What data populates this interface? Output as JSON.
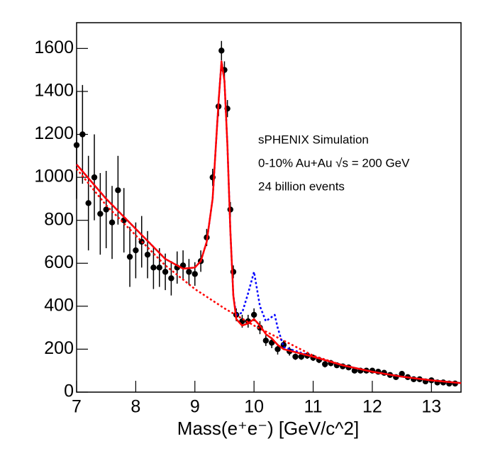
{
  "chart_data": {
    "type": "scatter",
    "xlabel": "Mass(e⁺e⁻) [GeV/c^2]",
    "annotations": [
      "sPHENIX Simulation",
      "0-10% Au+Au √s = 200 GeV",
      "24 billion events"
    ],
    "xlim": [
      7,
      13.5
    ],
    "ylim": [
      0,
      1720
    ],
    "xticks": [
      7,
      8,
      9,
      10,
      11,
      12,
      13
    ],
    "yticks": [
      0,
      200,
      400,
      600,
      800,
      1000,
      1200,
      1400,
      1600
    ],
    "points": {
      "color": "#000000",
      "x": [
        7.0,
        7.1,
        7.2,
        7.3,
        7.4,
        7.5,
        7.6,
        7.7,
        7.8,
        7.9,
        8.0,
        8.1,
        8.2,
        8.3,
        8.4,
        8.5,
        8.6,
        8.7,
        8.8,
        8.9,
        9.0,
        9.1,
        9.2,
        9.3,
        9.4,
        9.45,
        9.5,
        9.55,
        9.6,
        9.65,
        9.7,
        9.8,
        9.9,
        10.0,
        10.1,
        10.2,
        10.3,
        10.4,
        10.5,
        10.6,
        10.7,
        10.8,
        10.9,
        11.0,
        11.1,
        11.2,
        11.3,
        11.4,
        11.5,
        11.6,
        11.7,
        11.8,
        11.9,
        12.0,
        12.1,
        12.2,
        12.3,
        12.4,
        12.5,
        12.6,
        12.7,
        12.8,
        12.9,
        13.0,
        13.1,
        13.2,
        13.3,
        13.4
      ],
      "values": [
        1150,
        1200,
        880,
        1000,
        830,
        850,
        790,
        940,
        800,
        630,
        660,
        700,
        640,
        580,
        580,
        560,
        530,
        580,
        590,
        560,
        550,
        610,
        720,
        1000,
        1330,
        1590,
        1500,
        1320,
        850,
        560,
        360,
        330,
        330,
        360,
        300,
        240,
        230,
        200,
        220,
        190,
        165,
        165,
        170,
        160,
        150,
        130,
        135,
        125,
        120,
        115,
        100,
        100,
        100,
        100,
        95,
        90,
        80,
        70,
        85,
        70,
        60,
        60,
        50,
        55,
        45,
        45,
        40,
        40
      ],
      "errors": [
        250,
        230,
        220,
        200,
        190,
        180,
        170,
        160,
        150,
        140,
        130,
        120,
        110,
        100,
        90,
        85,
        80,
        75,
        70,
        60,
        55,
        50,
        40,
        40,
        45,
        45,
        40,
        40,
        35,
        30,
        30,
        30,
        30,
        30,
        30,
        25,
        25,
        25,
        20,
        20,
        15,
        15,
        15,
        15,
        15,
        15,
        15,
        12,
        12,
        12,
        12,
        12,
        12,
        10,
        10,
        10,
        10,
        10,
        10,
        10,
        10,
        10,
        10,
        10,
        10,
        10,
        10,
        10
      ]
    },
    "series": [
      {
        "color": "#ff0000",
        "style": "dotted",
        "x": [
          7,
          7.5,
          8,
          8.5,
          9,
          9.5,
          10,
          10.5,
          11,
          11.5,
          12,
          12.5,
          13,
          13.5
        ],
        "values": [
          1040,
          870,
          730,
          590,
          480,
          390,
          310,
          240,
          170,
          125,
          95,
          72,
          55,
          42
        ]
      },
      {
        "color": "#0000ff",
        "style": "dotted",
        "x": [
          7,
          7.5,
          8,
          8.5,
          8.8,
          9.0,
          9.1,
          9.2,
          9.3,
          9.4,
          9.45,
          9.5,
          9.55,
          9.6,
          9.65,
          9.7,
          9.8,
          9.9,
          10.0,
          10.1,
          10.2,
          10.3,
          10.35,
          10.4,
          10.5,
          11,
          11.5,
          12,
          12.5,
          13,
          13.5
        ],
        "values": [
          1060,
          900,
          760,
          620,
          575,
          580,
          610,
          700,
          900,
          1350,
          1540,
          1450,
          1150,
          750,
          450,
          360,
          370,
          460,
          560,
          400,
          330,
          350,
          360,
          300,
          210,
          165,
          125,
          95,
          72,
          55,
          42
        ]
      },
      {
        "color": "#ff0000",
        "style": "solid",
        "x": [
          7,
          7.5,
          8,
          8.5,
          8.8,
          9.0,
          9.1,
          9.2,
          9.3,
          9.4,
          9.45,
          9.5,
          9.55,
          9.6,
          9.65,
          9.7,
          9.8,
          9.9,
          10.0,
          10.1,
          10.2,
          10.3,
          10.4,
          10.5,
          11,
          11.5,
          12,
          12.5,
          13,
          13.5
        ],
        "values": [
          1060,
          900,
          760,
          620,
          575,
          580,
          610,
          700,
          900,
          1350,
          1540,
          1450,
          1150,
          750,
          450,
          340,
          310,
          320,
          340,
          310,
          270,
          250,
          220,
          200,
          165,
          125,
          95,
          72,
          55,
          42
        ]
      }
    ]
  }
}
